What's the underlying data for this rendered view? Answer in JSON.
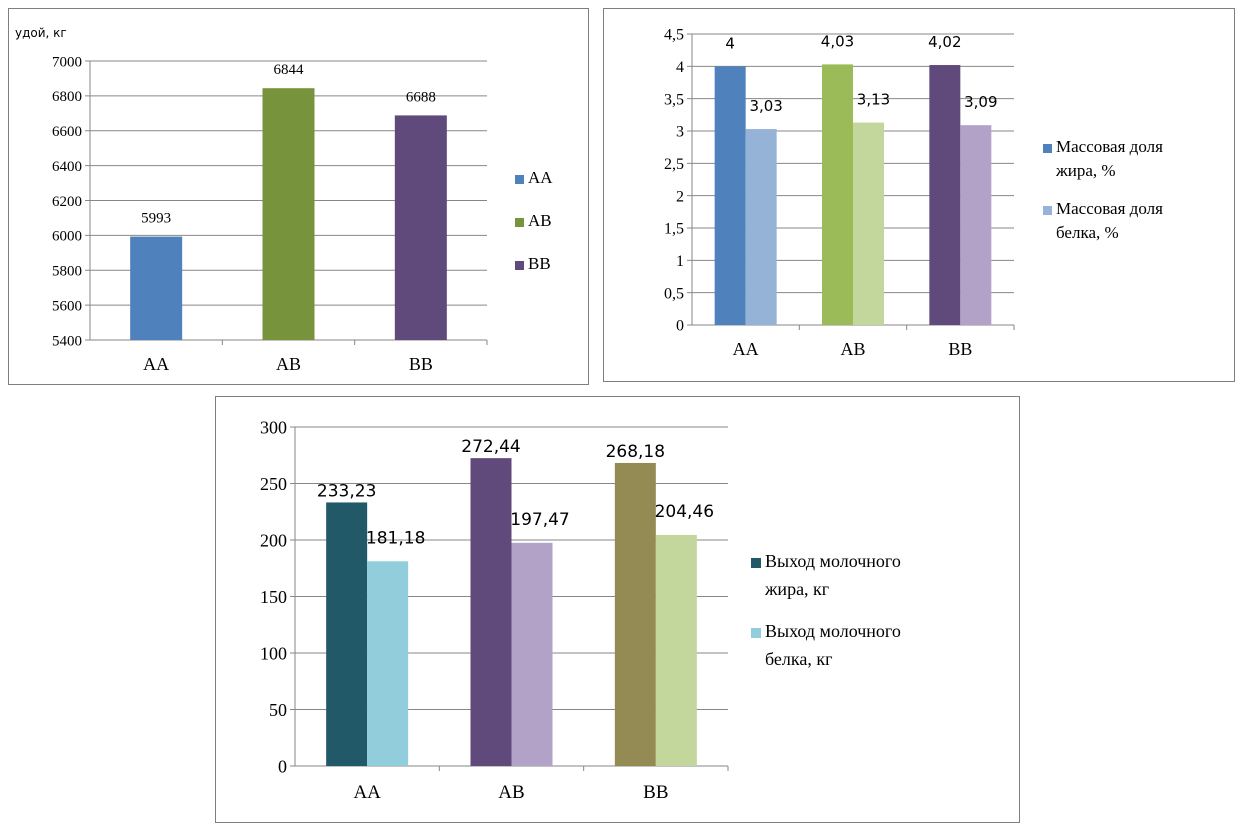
{
  "chart_data": [
    {
      "type": "bar",
      "ylabel": "удой, кг",
      "categories": [
        "AA",
        "AB",
        "BB"
      ],
      "values": [
        5993,
        6844,
        6688
      ],
      "data_labels": [
        "5993",
        "6844",
        "6688"
      ],
      "colors": [
        "#4f81bd",
        "#77933c",
        "#604a7b"
      ],
      "ylim": [
        5400,
        7000
      ],
      "yticks": [
        "5400",
        "5600",
        "5800",
        "6000",
        "6200",
        "6400",
        "6600",
        "6800",
        "7000"
      ],
      "grid": true,
      "legend": {
        "placement": "right",
        "entries": [
          {
            "name": "AA",
            "color": "#4f81bd"
          },
          {
            "name": "AB",
            "color": "#77933c"
          },
          {
            "name": "BB",
            "color": "#604a7b"
          }
        ]
      }
    },
    {
      "type": "bar",
      "categories": [
        "AA",
        "AB",
        "BB"
      ],
      "series": [
        {
          "name": "Массовая доля жира, %",
          "values": [
            4,
            4.03,
            4.02
          ],
          "labels": [
            "4",
            "4,03",
            "4,02"
          ],
          "colors": [
            "#4f81bd",
            "#9bbb59",
            "#604a7b"
          ]
        },
        {
          "name": "Массовая доля белка, %",
          "values": [
            3.03,
            3.13,
            3.09
          ],
          "labels": [
            "3,03",
            "3,13",
            "3,09"
          ],
          "colors": [
            "#95b3d7",
            "#c3d69b",
            "#b3a2c7"
          ]
        }
      ],
      "ylim": [
        0,
        4.5
      ],
      "yticks": [
        "0",
        "0,5",
        "1",
        "1,5",
        "2",
        "2,5",
        "3",
        "3,5",
        "4",
        "4,5"
      ],
      "grid": true,
      "legend": {
        "placement": "right",
        "entries": [
          {
            "lines": [
              "Массовая доля",
              "жира, %"
            ],
            "color": "#4f81bd"
          },
          {
            "lines": [
              "Массовая доля",
              "белка, %"
            ],
            "color": "#95b3d7"
          }
        ]
      }
    },
    {
      "type": "bar",
      "categories": [
        "AA",
        "AB",
        "BB"
      ],
      "series": [
        {
          "name": "Выход молочного жира, кг",
          "values": [
            233.23,
            272.44,
            268.18
          ],
          "labels": [
            "233,23",
            "272,44",
            "268,18"
          ],
          "colors": [
            "#215968",
            "#604a7b",
            "#948a54"
          ]
        },
        {
          "name": "Выход молочного белка, кг",
          "values": [
            181.18,
            197.47,
            204.46
          ],
          "labels": [
            "181,18",
            "197,47",
            "204,46"
          ],
          "colors": [
            "#92cddc",
            "#b3a2c7",
            "#c3d69b"
          ]
        }
      ],
      "ylim": [
        0,
        300
      ],
      "yticks": [
        "0",
        "50",
        "100",
        "150",
        "200",
        "250",
        "300"
      ],
      "grid": true,
      "legend": {
        "placement": "right",
        "entries": [
          {
            "lines": [
              "Выход  молочного",
              "жира, кг"
            ],
            "color": "#215968"
          },
          {
            "lines": [
              "Выход  молочного",
              "белка, кг"
            ],
            "color": "#92cddc"
          }
        ]
      }
    }
  ]
}
